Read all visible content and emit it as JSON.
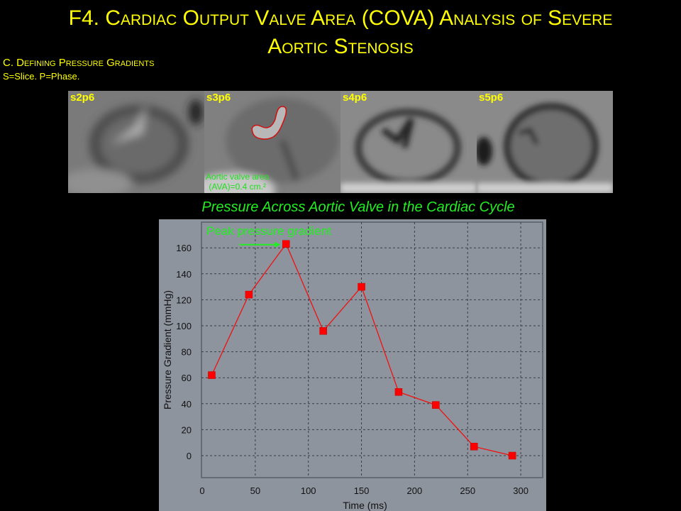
{
  "slide": {
    "title_prefix": "F4. ",
    "title_line1": "Cardiac Output Valve Area (COVA) Analysis of Severe",
    "title_line2": "Aortic Stenosis",
    "section": "C. Defining Pressure Gradients",
    "note": "S=Slice. P=Phase."
  },
  "images": [
    {
      "label": "s2p6"
    },
    {
      "label": "s3p6",
      "annotation_line1": "Aortic valve area",
      "annotation_line2": "(AVA)=0.4 cm.²"
    },
    {
      "label": "s4p6"
    },
    {
      "label": "s5p6"
    }
  ],
  "chart_title": "Pressure Across Aortic Valve in the Cardiac Cycle",
  "annotation": {
    "text": "Peak pressure gradient",
    "color": "#22ee22"
  },
  "colors": {
    "title": "#ffff00",
    "series": "#ee1111",
    "chart_bg": "#8e949e",
    "chart_title": "#22ee22"
  },
  "chart_data": {
    "type": "line",
    "title": "Pressure Across Aortic Valve in the Cardiac Cycle",
    "xlabel": "Time (ms)",
    "ylabel": "Pressure Gradient (mmHg)",
    "xlim": [
      0,
      320
    ],
    "ylim": [
      -15,
      180
    ],
    "xticks": [
      0,
      50,
      100,
      150,
      200,
      250,
      300
    ],
    "yticks": [
      0,
      20,
      40,
      60,
      80,
      100,
      120,
      140,
      160
    ],
    "grid": true,
    "legend": null,
    "annotations": [
      {
        "text": "Peak pressure gradient",
        "arrow_to": [
          79,
          163
        ]
      }
    ],
    "series": [
      {
        "name": "Pressure Gradient",
        "x": [
          9,
          44,
          79,
          114,
          150,
          185,
          220,
          256,
          292
        ],
        "y": [
          62,
          124,
          163,
          96,
          130,
          49,
          39,
          7,
          0
        ]
      }
    ]
  }
}
